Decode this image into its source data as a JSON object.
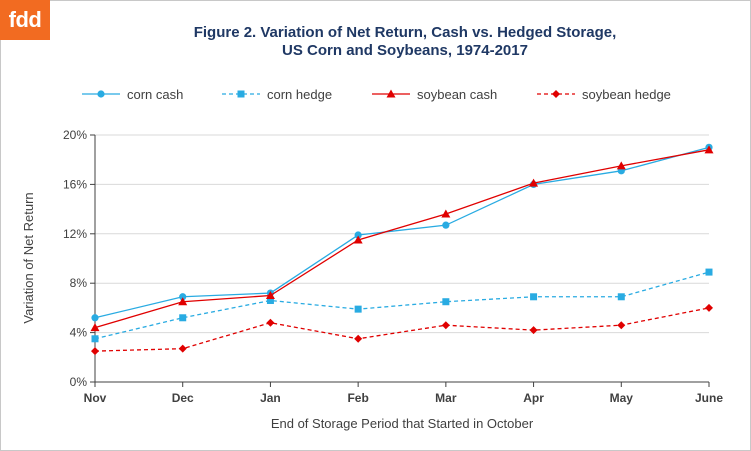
{
  "logo": "fdd",
  "colors": {
    "corn": "#29ABE2",
    "soybean": "#E00000",
    "title": "#1f3864",
    "grid": "#d9d9d9",
    "axis": "#404040"
  },
  "chart_data": {
    "type": "line",
    "title_line1": "Figure 2. Variation of Net Return, Cash vs. Hedged Storage,",
    "title_line2": "US Corn and Soybeans, 1974-2017",
    "xlabel": "End of Storage Period that Started in October",
    "ylabel": "Variation of Net Return",
    "categories": [
      "Nov",
      "Dec",
      "Jan",
      "Feb",
      "Mar",
      "Apr",
      "May",
      "June"
    ],
    "ylim": [
      0,
      20
    ],
    "yticks": [
      "0%",
      "4%",
      "8%",
      "12%",
      "16%",
      "20%"
    ],
    "grid": "horizontal",
    "legend_position": "top",
    "series": [
      {
        "name": "corn cash",
        "marker": "circle",
        "dash": false,
        "color": "#29ABE2",
        "values": [
          5.2,
          6.9,
          7.2,
          11.9,
          12.7,
          16.0,
          17.1,
          19.0
        ]
      },
      {
        "name": "corn hedge",
        "marker": "square",
        "dash": true,
        "color": "#29ABE2",
        "values": [
          3.5,
          5.2,
          6.6,
          5.9,
          6.5,
          6.9,
          6.9,
          8.9
        ]
      },
      {
        "name": "soybean cash",
        "marker": "triangle",
        "dash": false,
        "color": "#E00000",
        "values": [
          4.4,
          6.5,
          7.0,
          11.5,
          13.6,
          16.1,
          17.5,
          18.8
        ]
      },
      {
        "name": "soybean hedge",
        "marker": "diamond",
        "dash": true,
        "color": "#E00000",
        "values": [
          2.5,
          2.7,
          4.8,
          3.5,
          4.6,
          4.2,
          4.6,
          6.0
        ]
      }
    ]
  }
}
